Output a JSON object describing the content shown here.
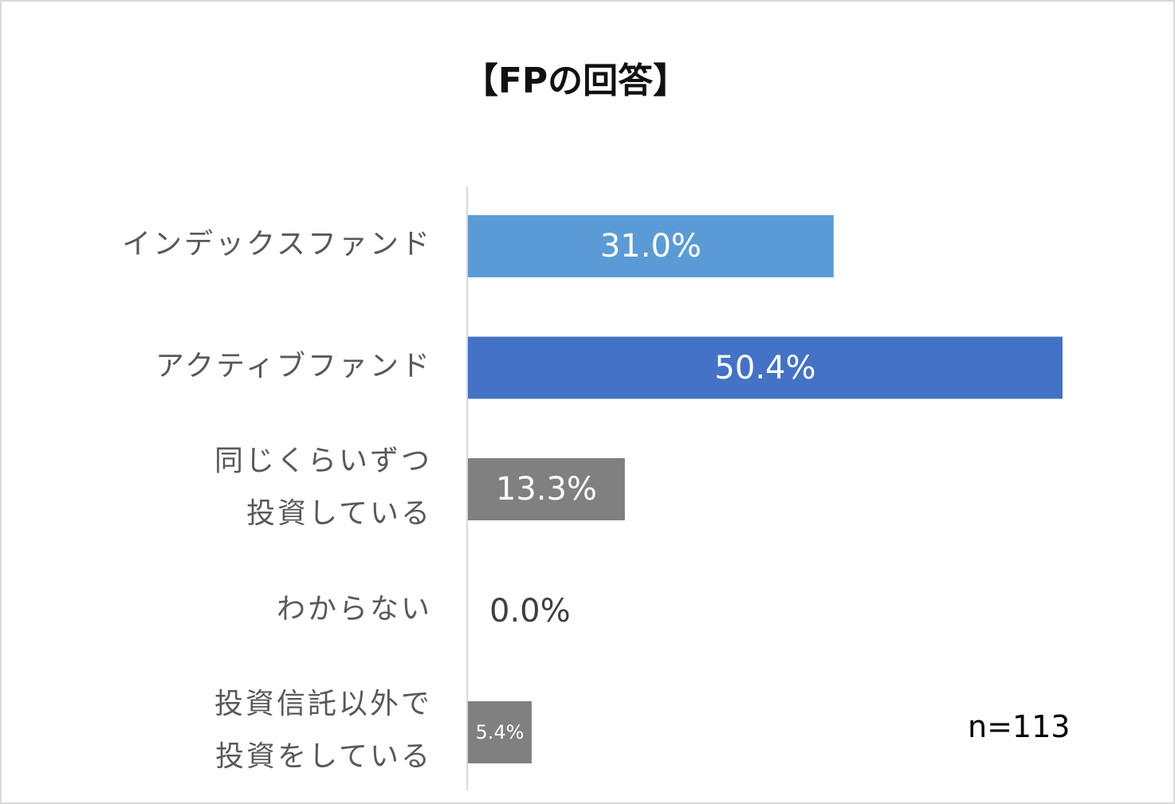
{
  "chart_data": {
    "type": "bar",
    "orientation": "horizontal",
    "title": "【FPの回答】",
    "categories": [
      [
        "インデックスファンド"
      ],
      [
        "アクティブファンド"
      ],
      [
        "同じくらいずつ",
        "投資している"
      ],
      [
        "わからない"
      ],
      [
        "投資信託以外で",
        "投資をしている"
      ]
    ],
    "values": [
      31.0,
      50.4,
      13.3,
      0.0,
      5.4
    ],
    "value_labels": [
      "31.0%",
      "50.4%",
      "13.3%",
      "0.0%",
      "5.4%"
    ],
    "bar_colors": [
      "#5b9bd5",
      "#4472c4",
      "#808080",
      "#808080",
      "#808080"
    ],
    "xlim": [
      0,
      51
    ],
    "grid": false,
    "legend": "none"
  },
  "annotation": {
    "sample_size": "n=113"
  }
}
